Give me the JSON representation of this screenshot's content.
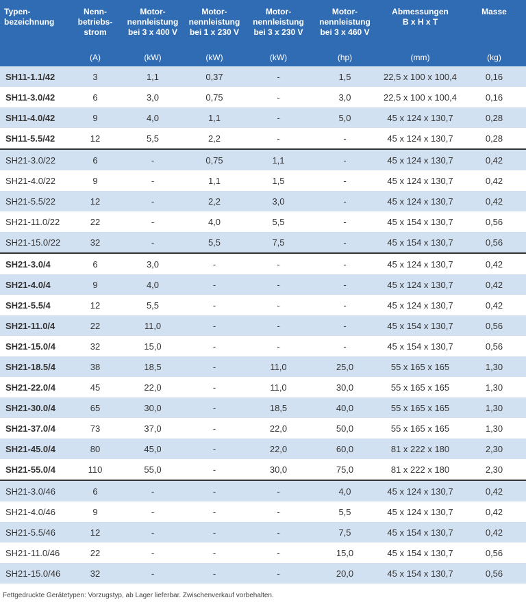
{
  "table": {
    "columns": [
      {
        "label": [
          "Typen-",
          "bezeichnung"
        ]
      },
      {
        "label": [
          "Nenn-",
          "betriebs-",
          "strom"
        ],
        "unit": "(A)"
      },
      {
        "label": [
          "Motor-",
          "nennleistung",
          "bei 3 x 400 V"
        ],
        "unit": "(kW)"
      },
      {
        "label": [
          "Motor-",
          "nennleistung",
          "bei 1 x 230 V"
        ],
        "unit": "(kW)"
      },
      {
        "label": [
          "Motor-",
          "nennleistung",
          "bei  3 x 230 V"
        ],
        "unit": "(kW)"
      },
      {
        "label": [
          "Motor-",
          "nennleistung",
          "bei  3 x 460 V"
        ],
        "unit": "(hp)"
      },
      {
        "label": [
          "Abmessungen",
          "B x H x T"
        ],
        "unit": "(mm)"
      },
      {
        "label": [
          "Masse"
        ],
        "unit": "(kg)"
      }
    ],
    "groups": [
      {
        "bold": true,
        "rows": [
          [
            "SH11-1.1/42",
            "3",
            "1,1",
            "0,37",
            "-",
            "1,5",
            "22,5 x 100 x 100,4",
            "0,16"
          ],
          [
            "SH11-3.0/42",
            "6",
            "3,0",
            "0,75",
            "-",
            "3,0",
            "22,5 x 100 x 100,4",
            "0,16"
          ],
          [
            "SH11-4.0/42",
            "9",
            "4,0",
            "1,1",
            "-",
            "5,0",
            "45 x 124 x 130,7",
            "0,28"
          ],
          [
            "SH11-5.5/42",
            "12",
            "5,5",
            "2,2",
            "-",
            "-",
            "45 x 124 x 130,7",
            "0,28"
          ]
        ]
      },
      {
        "bold": false,
        "rows": [
          [
            "SH21-3.0/22",
            "6",
            "-",
            "0,75",
            "1,1",
            "-",
            "45 x 124 x 130,7",
            "0,42"
          ],
          [
            "SH21-4.0/22",
            "9",
            "-",
            "1,1",
            "1,5",
            "-",
            "45 x 124 x 130,7",
            "0,42"
          ],
          [
            "SH21-5.5/22",
            "12",
            "-",
            "2,2",
            "3,0",
            "-",
            "45 x 124 x 130,7",
            "0,42"
          ],
          [
            "SH21-11.0/22",
            "22",
            "-",
            "4,0",
            "5,5",
            "-",
            "45 x 154 x 130,7",
            "0,56"
          ],
          [
            "SH21-15.0/22",
            "32",
            "-",
            "5,5",
            "7,5",
            "-",
            "45 x 154 x 130,7",
            "0,56"
          ]
        ]
      },
      {
        "bold": true,
        "rows": [
          [
            "SH21-3.0/4",
            "6",
            "3,0",
            "-",
            "-",
            "-",
            "45 x 124 x 130,7",
            "0,42"
          ],
          [
            "SH21-4.0/4",
            "9",
            "4,0",
            "-",
            "-",
            "-",
            "45 x 124 x 130,7",
            "0,42"
          ],
          [
            "SH21-5.5/4",
            "12",
            "5,5",
            "-",
            "-",
            "-",
            "45 x 124 x 130,7",
            "0,42"
          ],
          [
            "SH21-11.0/4",
            "22",
            "11,0",
            "-",
            "-",
            "-",
            "45 x 154 x 130,7",
            "0,56"
          ],
          [
            "SH21-15.0/4",
            "32",
            "15,0",
            "-",
            "-",
            "-",
            "45 x 154 x 130,7",
            "0,56"
          ],
          [
            "SH21-18.5/4",
            "38",
            "18,5",
            "-",
            "11,0",
            "25,0",
            "55 x 165 x 165",
            "1,30"
          ],
          [
            "SH21-22.0/4",
            "45",
            "22,0",
            "-",
            "11,0",
            "30,0",
            "55 x 165 x 165",
            "1,30"
          ],
          [
            "SH21-30.0/4",
            "65",
            "30,0",
            "-",
            "18,5",
            "40,0",
            "55 x 165 x 165",
            "1,30"
          ],
          [
            "SH21-37.0/4",
            "73",
            "37,0",
            "-",
            "22,0",
            "50,0",
            "55 x 165 x 165",
            "1,30"
          ],
          [
            "SH21-45.0/4",
            "80",
            "45,0",
            "-",
            "22,0",
            "60,0",
            "81 x 222 x 180",
            "2,30"
          ],
          [
            "SH21-55.0/4",
            "110",
            "55,0",
            "-",
            "30,0",
            "75,0",
            "81 x 222 x 180",
            "2,30"
          ]
        ]
      },
      {
        "bold": false,
        "rows": [
          [
            "SH21-3.0/46",
            "6",
            "-",
            "-",
            "-",
            "4,0",
            "45 x 124 x 130,7",
            "0,42"
          ],
          [
            "SH21-4.0/46",
            "9",
            "-",
            "-",
            "-",
            "5,5",
            "45 x 124 x 130,7",
            "0,42"
          ],
          [
            "SH21-5.5/46",
            "12",
            "-",
            "-",
            "-",
            "7,5",
            "45 x 154 x 130,7",
            "0,42"
          ],
          [
            "SH21-11.0/46",
            "22",
            "-",
            "-",
            "-",
            "15,0",
            "45 x 154 x 130,7",
            "0,56"
          ],
          [
            "SH21-15.0/46",
            "32",
            "-",
            "-",
            "-",
            "20,0",
            "45 x 154 x 130,7",
            "0,56"
          ]
        ]
      }
    ],
    "footnote": "Fettgedruckte Gerätetypen: Vorzugstyp, ab Lager lieferbar. Zwischenverkauf vorbehalten."
  }
}
